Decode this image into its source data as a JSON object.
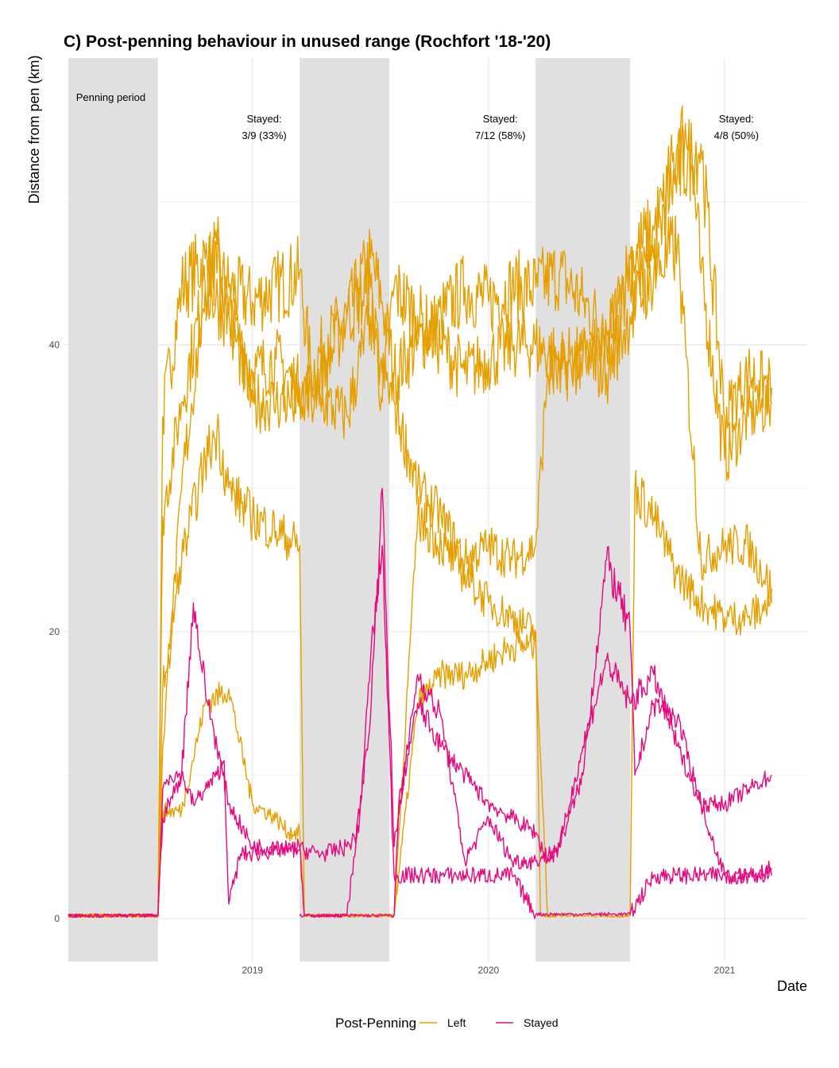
{
  "chart_data": {
    "type": "line",
    "title": "C) Post-penning behaviour in unused range (Rochfort '18-'20)",
    "xlabel": "Date",
    "ylabel": "Distance from pen (km)",
    "xlim": [
      2018.2,
      2021.35
    ],
    "ylim": [
      -3,
      60
    ],
    "x_ticks": [
      2019,
      2020,
      2021
    ],
    "x_tick_labels": [
      "2019",
      "2020",
      "2021"
    ],
    "y_ticks": [
      0,
      20,
      40
    ],
    "y_tick_labels": [
      "0",
      "20",
      "40"
    ],
    "grid": true,
    "penning_periods": [
      [
        2018.22,
        2018.6
      ],
      [
        2019.2,
        2019.58
      ],
      [
        2020.2,
        2020.6
      ]
    ],
    "annotations": [
      {
        "x": 2018.4,
        "y": 57,
        "lines": [
          "Penning period"
        ]
      },
      {
        "x": 2019.05,
        "y": 55.5,
        "lines": [
          "Stayed:",
          "3/9 (33%)"
        ]
      },
      {
        "x": 2020.05,
        "y": 55.5,
        "lines": [
          "Stayed:",
          "7/12 (58%)"
        ]
      },
      {
        "x": 2021.05,
        "y": 55.5,
        "lines": [
          "Stayed:",
          "4/8 (50%)"
        ]
      }
    ],
    "legend": {
      "title": "Post-Penning",
      "position": "bottom",
      "entries": [
        {
          "name": "Left",
          "color": "#E69F00"
        },
        {
          "name": "Stayed",
          "color": "#E7087D"
        }
      ]
    },
    "series": [
      {
        "name": "Left",
        "group": "Left",
        "x": [
          2018.22,
          2018.6,
          2018.62,
          2018.7,
          2018.8,
          2018.85,
          2018.9,
          2019.0,
          2019.1,
          2019.2,
          2019.25,
          2019.3,
          2019.4,
          2019.45,
          2019.5,
          2019.55,
          2019.6,
          2019.7,
          2019.8,
          2019.9,
          2020.0,
          2020.1,
          2020.2,
          2020.3,
          2020.4,
          2020.5,
          2020.6,
          2020.7,
          2020.8,
          2020.85,
          2020.9,
          2021.0,
          2021.1,
          2021.2
        ],
        "y": [
          0.2,
          0.2,
          35,
          44,
          46,
          45,
          44,
          43,
          44,
          45,
          38,
          40,
          42,
          44,
          46,
          43,
          38,
          40,
          42,
          44,
          43,
          44,
          44,
          45,
          43,
          41,
          44,
          46,
          54,
          55,
          45,
          32,
          35,
          36
        ]
      },
      {
        "name": "Left",
        "group": "Left",
        "x": [
          2018.22,
          2018.6,
          2018.62,
          2018.7,
          2018.8,
          2018.85,
          2018.9,
          2019.0,
          2019.1,
          2019.2,
          2019.25,
          2019.3,
          2019.4,
          2019.5,
          2019.55,
          2019.6,
          2019.7,
          2019.8,
          2019.9,
          2020.0,
          2020.1,
          2020.2,
          2020.3,
          2020.4,
          2020.5,
          2020.6,
          2020.7,
          2020.8,
          2020.9,
          2021.0,
          2021.1,
          2021.2
        ],
        "y": [
          0.2,
          0.2,
          28,
          36,
          44,
          47,
          42,
          38,
          39,
          37,
          37,
          38,
          42,
          44,
          36,
          44,
          42,
          40,
          38,
          39,
          40,
          40,
          39,
          39,
          40,
          46,
          48,
          52,
          54,
          35,
          38,
          37
        ]
      },
      {
        "name": "Left",
        "group": "Left",
        "x": [
          2018.22,
          2018.6,
          2018.62,
          2018.7,
          2018.8,
          2018.9,
          2019.0,
          2019.1,
          2019.2,
          2019.25,
          2019.3,
          2019.4,
          2019.5,
          2019.55,
          2019.6,
          2019.7,
          2019.8,
          2019.9,
          2020.0,
          2020.1,
          2020.2,
          2020.25,
          2020.3,
          2020.4,
          2020.5,
          2020.6,
          2020.7,
          2020.8,
          2020.9,
          2021.0,
          2021.1,
          2021.2
        ],
        "y": [
          0.2,
          0.2,
          12,
          30,
          44,
          42,
          36,
          36,
          36,
          36,
          36,
          35,
          42,
          38,
          36,
          30,
          28,
          25,
          26,
          25,
          26,
          38,
          38,
          39,
          38,
          42,
          45,
          47,
          25,
          26,
          26,
          23
        ]
      },
      {
        "name": "Left",
        "group": "Left",
        "x": [
          2018.22,
          2018.6,
          2018.62,
          2018.7,
          2018.8,
          2018.9,
          2019.0,
          2019.1,
          2019.15,
          2019.2,
          2019.22,
          2019.6,
          2019.7,
          2019.8,
          2019.9,
          2020.0,
          2020.1,
          2020.2,
          2020.25,
          2020.3
        ],
        "y": [
          0.2,
          0.2,
          7.5,
          7.5,
          15,
          16,
          8,
          7,
          6,
          6,
          0.2,
          0.2,
          15,
          17,
          17,
          18,
          19,
          19,
          0.2,
          0.2
        ]
      },
      {
        "name": "Left",
        "group": "Left",
        "x": [
          2018.22,
          2018.6,
          2018.62,
          2018.7,
          2018.8,
          2018.85,
          2018.9,
          2019.0,
          2019.1,
          2019.2,
          2019.22,
          2019.3,
          2019.4,
          2019.5,
          2019.6,
          2019.7,
          2019.8,
          2019.9,
          2020.0,
          2020.1,
          2020.2,
          2020.22,
          2020.3,
          2020.4,
          2020.5,
          2020.6,
          2020.62,
          2020.7,
          2020.8,
          2020.9,
          2021.0,
          2021.1,
          2021.2
        ],
        "y": [
          0.2,
          0.2,
          16,
          25,
          32,
          34,
          30,
          28,
          27,
          26,
          0.2,
          0.2,
          0.2,
          0.2,
          0.2,
          28,
          26,
          24,
          22,
          21,
          20,
          0.2,
          0.2,
          0.2,
          0.2,
          0.2,
          30,
          28,
          24,
          22,
          21,
          21,
          22
        ]
      },
      {
        "name": "Stayed",
        "group": "Stayed",
        "x": [
          2018.22,
          2018.6,
          2018.62,
          2018.65,
          2018.7,
          2018.75,
          2018.8,
          2018.85,
          2018.88,
          2018.9,
          2018.95,
          2019.0,
          2019.1,
          2019.2,
          2019.3,
          2019.4,
          2019.45,
          2019.5,
          2019.55,
          2019.6,
          2019.7,
          2019.8,
          2019.9,
          2020.0,
          2020.1,
          2020.2,
          2020.3,
          2020.4,
          2020.5,
          2020.6,
          2020.7,
          2020.8,
          2020.9,
          2021.0,
          2021.1,
          2021.2
        ],
        "y": [
          0.2,
          0.2,
          9,
          10,
          10,
          8,
          9,
          10,
          11,
          1,
          4.5,
          4.5,
          4.8,
          4.8,
          4.5,
          5,
          6,
          18,
          26,
          3,
          3,
          3,
          3,
          3,
          3,
          0.3,
          0.3,
          0.3,
          0.3,
          0.3,
          3,
          3,
          3,
          3,
          3,
          3.5
        ]
      },
      {
        "name": "Stayed",
        "group": "Stayed",
        "x": [
          2018.22,
          2018.6,
          2018.62,
          2018.7,
          2018.75,
          2018.8,
          2018.85,
          2018.9,
          2019.0,
          2019.2,
          2019.22,
          2019.6,
          2019.62,
          2019.7,
          2019.8,
          2019.9,
          2020.0,
          2020.1,
          2020.2,
          2020.25,
          2020.3,
          2020.4,
          2020.5,
          2020.6,
          2020.62,
          2020.7,
          2020.8,
          2020.9,
          2021.0,
          2021.1,
          2021.2
        ],
        "y": [
          0.2,
          0.2,
          7,
          10,
          22,
          16,
          12,
          8,
          5,
          5,
          0.2,
          0.2,
          8,
          15,
          12,
          10,
          8,
          7,
          6,
          4,
          5,
          10,
          25,
          20,
          10,
          15,
          14,
          8,
          8,
          9,
          10
        ]
      },
      {
        "name": "Stayed",
        "group": "Stayed",
        "x": [
          2019.2,
          2019.4,
          2019.5,
          2019.55,
          2019.6,
          2019.7,
          2019.8,
          2019.9,
          2020.0,
          2020.1,
          2020.2,
          2020.3,
          2020.4,
          2020.5,
          2020.6,
          2020.7,
          2020.8,
          2020.9,
          2021.0,
          2021.1,
          2021.2
        ],
        "y": [
          0.2,
          0.2,
          14,
          30,
          5,
          17,
          14,
          4,
          7,
          4,
          4,
          5,
          12,
          18,
          15,
          17,
          12,
          8,
          3,
          3,
          3
        ]
      }
    ]
  }
}
